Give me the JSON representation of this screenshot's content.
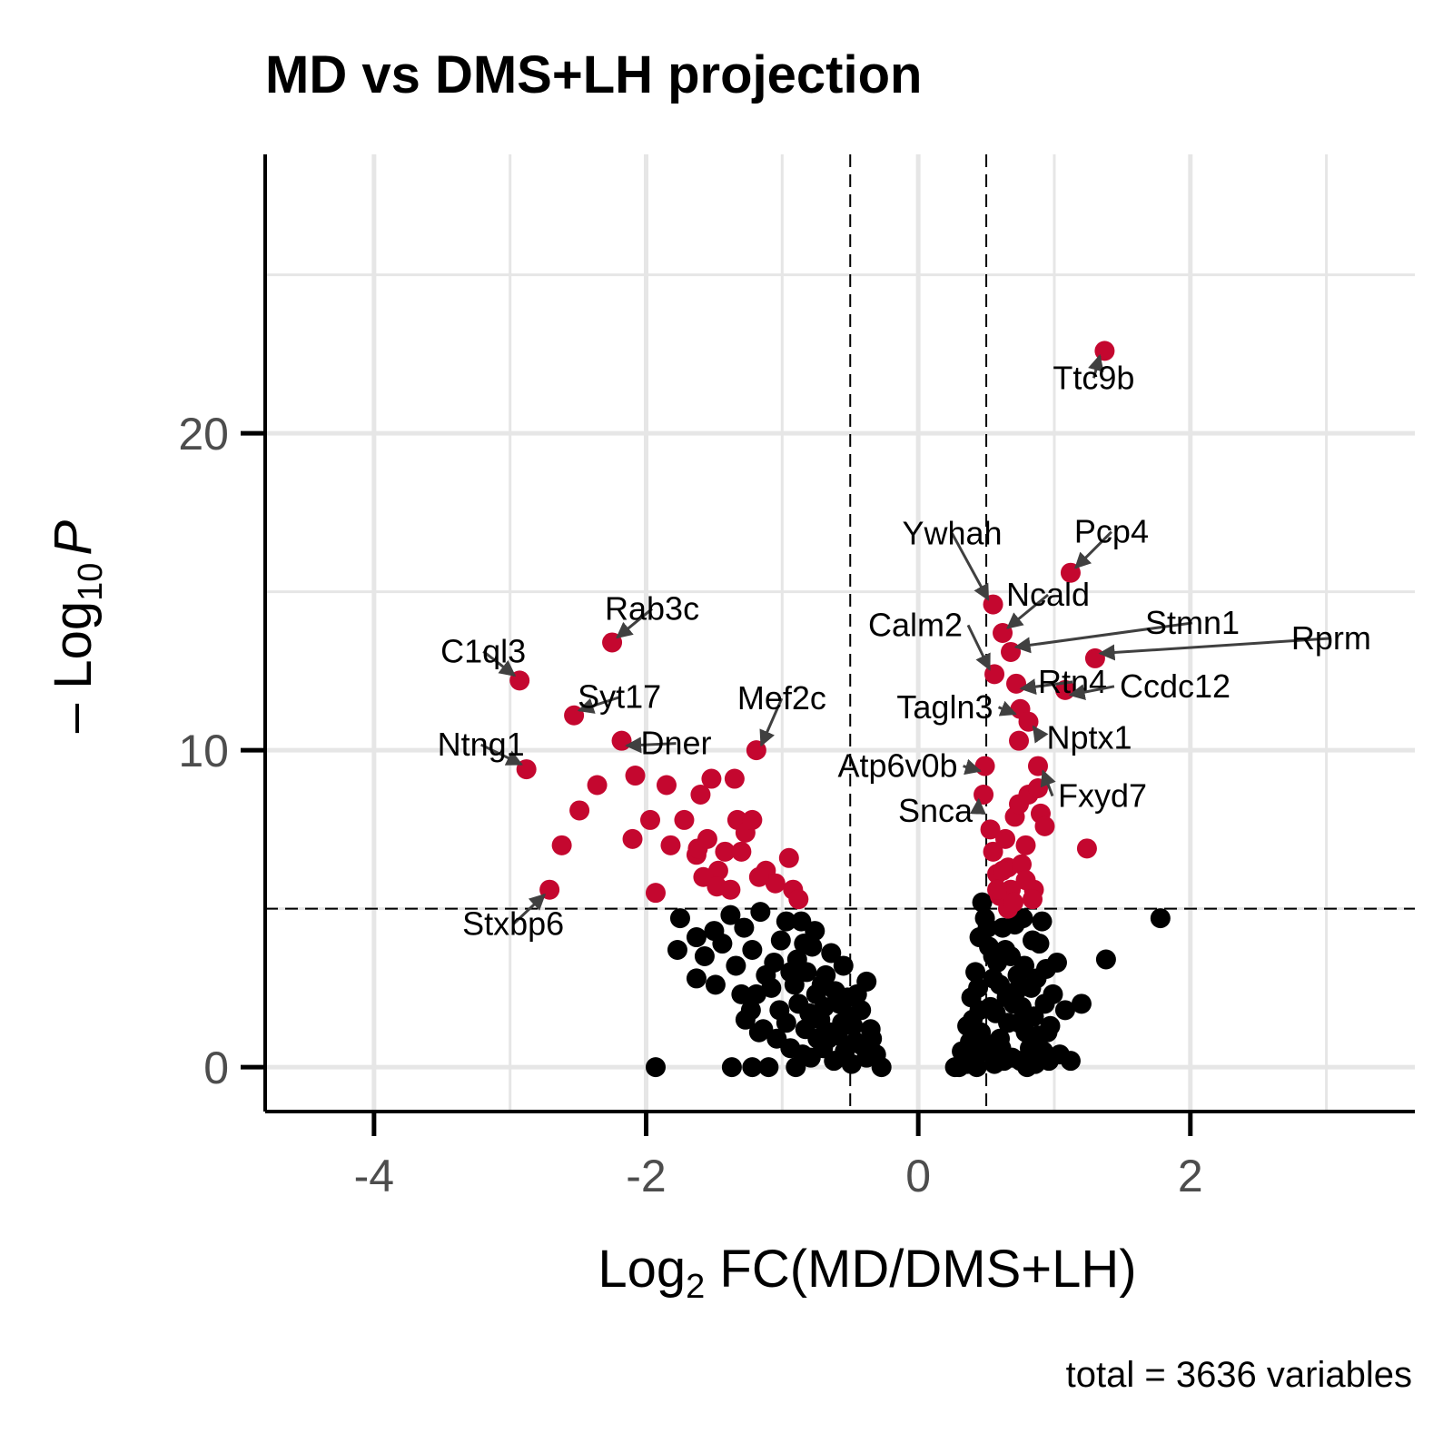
{
  "chart_data": {
    "type": "scatter",
    "title": "MD vs DMS+LH projection",
    "xlabel_main": "Log",
    "xlabel_sub": "2",
    "xlabel_rest": " FC(MD/DMS+LH)",
    "ylabel_main": "– Log",
    "ylabel_sub": "10",
    "ylabel_p": "P",
    "caption": "total = 3636 variables",
    "xlim": [
      -4.8,
      3.65
    ],
    "ylim": [
      -1.4,
      28.8
    ],
    "x_ticks": [
      -4,
      -2,
      0,
      2
    ],
    "x_tick_labels": [
      "-4",
      "-2",
      "0",
      "2"
    ],
    "y_ticks": [
      0,
      10,
      20
    ],
    "y_tick_labels": [
      "0",
      "10",
      "20"
    ],
    "fc_cutoff": 0.5,
    "p_cutoff": 5,
    "grid": true,
    "colors": {
      "significant": "#c4072f",
      "not_significant": "#000000",
      "cutoff_line": "#000000",
      "grid": "#e6e6e6"
    },
    "labeled_points": [
      {
        "gene": "Ttc9b",
        "x": 1.37,
        "y": 22.6
      },
      {
        "gene": "Pcp4",
        "x": 1.12,
        "y": 15.6
      },
      {
        "gene": "Ywhah",
        "x": 0.55,
        "y": 14.6
      },
      {
        "gene": "Ncald",
        "x": 0.62,
        "y": 13.7
      },
      {
        "gene": "Stmn1",
        "x": 0.68,
        "y": 13.1
      },
      {
        "gene": "Rprm",
        "x": 1.3,
        "y": 12.9
      },
      {
        "gene": "Calm2",
        "x": 0.56,
        "y": 12.4
      },
      {
        "gene": "Rtn4",
        "x": 0.72,
        "y": 12.1
      },
      {
        "gene": "Ccdc12",
        "x": 1.08,
        "y": 11.9
      },
      {
        "gene": "Tagln3",
        "x": 0.75,
        "y": 11.3
      },
      {
        "gene": "Nptx1",
        "x": 0.81,
        "y": 10.9
      },
      {
        "gene": "Atp6v0b",
        "x": 0.49,
        "y": 9.5
      },
      {
        "gene": "Fxyd7",
        "x": 0.88,
        "y": 9.5
      },
      {
        "gene": "Snca",
        "x": 0.48,
        "y": 8.6
      },
      {
        "gene": "Rab3c",
        "x": -2.25,
        "y": 13.4
      },
      {
        "gene": "C1ql3",
        "x": -2.93,
        "y": 12.2
      },
      {
        "gene": "Syt17",
        "x": -2.53,
        "y": 11.1
      },
      {
        "gene": "Dner",
        "x": -2.18,
        "y": 10.3
      },
      {
        "gene": "Mef2c",
        "x": -1.19,
        "y": 10.0
      },
      {
        "gene": "Ntng1",
        "x": -2.88,
        "y": 9.4
      },
      {
        "gene": "Stxbp6",
        "x": -2.71,
        "y": 5.6
      }
    ],
    "significant_points": [
      [
        -2.62,
        7.0
      ],
      [
        -2.49,
        8.1
      ],
      [
        -2.36,
        8.9
      ],
      [
        -2.08,
        9.2
      ],
      [
        -2.1,
        7.2
      ],
      [
        -1.97,
        7.8
      ],
      [
        -1.82,
        7.0
      ],
      [
        -1.72,
        7.8
      ],
      [
        -1.63,
        6.7
      ],
      [
        -1.6,
        8.6
      ],
      [
        -1.52,
        9.1
      ],
      [
        -1.42,
        6.8
      ],
      [
        -1.47,
        6.2
      ],
      [
        -1.33,
        7.8
      ],
      [
        -1.35,
        9.1
      ],
      [
        -1.27,
        7.4
      ],
      [
        -1.22,
        7.8
      ],
      [
        -1.12,
        6.2
      ],
      [
        -1.05,
        5.8
      ],
      [
        -0.95,
        6.6
      ],
      [
        -0.92,
        5.6
      ],
      [
        -1.93,
        5.5
      ],
      [
        -1.58,
        6.0
      ],
      [
        -1.48,
        5.7
      ],
      [
        -1.3,
        6.8
      ],
      [
        -1.17,
        6.0
      ],
      [
        -1.38,
        5.6
      ],
      [
        -0.88,
        5.3
      ],
      [
        -1.62,
        6.9
      ],
      [
        -1.55,
        7.2
      ],
      [
        -1.85,
        8.9
      ],
      [
        0.53,
        7.5
      ],
      [
        0.55,
        6.8
      ],
      [
        0.58,
        6.1
      ],
      [
        0.6,
        5.4
      ],
      [
        0.64,
        7.2
      ],
      [
        0.66,
        6.3
      ],
      [
        0.68,
        5.6
      ],
      [
        0.71,
        7.9
      ],
      [
        0.74,
        8.3
      ],
      [
        0.76,
        6.4
      ],
      [
        0.79,
        7.0
      ],
      [
        0.81,
        8.6
      ],
      [
        0.85,
        5.6
      ],
      [
        0.88,
        8.8
      ],
      [
        0.9,
        8.0
      ],
      [
        0.93,
        7.6
      ],
      [
        0.79,
        5.9
      ],
      [
        0.74,
        10.3
      ],
      [
        0.66,
        5.0
      ],
      [
        1.24,
        6.9
      ],
      [
        0.62,
        6.2
      ],
      [
        0.7,
        5.2
      ],
      [
        0.58,
        5.6
      ],
      [
        0.84,
        5.3
      ]
    ],
    "ns_points": [
      [
        1.78,
        4.7
      ],
      [
        1.38,
        3.4
      ],
      [
        1.2,
        2.0
      ],
      [
        0.95,
        1.1
      ],
      [
        1.02,
        3.3
      ],
      [
        1.04,
        0.4
      ],
      [
        -1.93,
        0.0
      ],
      [
        -1.37,
        0.0
      ],
      [
        -1.22,
        0.0
      ],
      [
        -1.75,
        4.7
      ],
      [
        -1.77,
        3.7
      ],
      [
        -1.63,
        4.1
      ],
      [
        -1.57,
        3.5
      ],
      [
        -1.63,
        2.8
      ],
      [
        -1.49,
        2.6
      ],
      [
        -1.34,
        3.2
      ],
      [
        -1.28,
        4.4
      ],
      [
        -1.22,
        3.7
      ],
      [
        -1.19,
        2.3
      ],
      [
        -1.08,
        2.5
      ],
      [
        -1.01,
        4.0
      ],
      [
        -0.97,
        4.6
      ],
      [
        -0.86,
        4.6
      ],
      [
        -0.89,
        3.4
      ],
      [
        -0.82,
        3.0
      ],
      [
        -0.78,
        3.8
      ],
      [
        -0.75,
        2.3
      ],
      [
        -0.69,
        1.9
      ],
      [
        -0.64,
        3.6
      ],
      [
        -0.61,
        2.4
      ],
      [
        -0.55,
        3.2
      ],
      [
        -0.52,
        2.2
      ],
      [
        -0.42,
        1.8
      ],
      [
        -0.38,
        2.7
      ],
      [
        -0.35,
        1.2
      ],
      [
        -0.31,
        0.4
      ],
      [
        -0.27,
        0.0
      ],
      [
        -0.46,
        0.8
      ],
      [
        -0.56,
        1.4
      ],
      [
        -0.66,
        0.9
      ],
      [
        -0.72,
        1.5
      ],
      [
        -0.83,
        1.2
      ],
      [
        -0.94,
        0.6
      ],
      [
        -1.04,
        0.9
      ],
      [
        -1.14,
        1.2
      ],
      [
        -1.23,
        1.8
      ],
      [
        -1.17,
        1.1
      ],
      [
        -1.27,
        1.5
      ],
      [
        -0.88,
        2.0
      ],
      [
        -0.62,
        0.2
      ],
      [
        -0.49,
        0.1
      ],
      [
        -0.38,
        0.3
      ],
      [
        -0.79,
        0.3
      ],
      [
        -0.9,
        0.0
      ],
      [
        -1.1,
        0.0
      ],
      [
        -0.7,
        0.6
      ],
      [
        -0.59,
        1.0
      ],
      [
        -0.48,
        1.3
      ],
      [
        -0.42,
        0.7
      ],
      [
        -0.34,
        0.9
      ],
      [
        -0.54,
        0.5
      ],
      [
        -0.74,
        0.9
      ],
      [
        -0.85,
        0.4
      ],
      [
        -0.97,
        1.4
      ],
      [
        -0.65,
        1.1
      ],
      [
        -0.68,
        2.9
      ],
      [
        -0.58,
        2.0
      ],
      [
        -0.71,
        2.6
      ],
      [
        -0.8,
        1.7
      ],
      [
        -0.91,
        2.6
      ],
      [
        -1.02,
        1.8
      ],
      [
        -1.12,
        2.9
      ],
      [
        -1.06,
        3.3
      ],
      [
        -0.94,
        3.0
      ],
      [
        -0.84,
        3.9
      ],
      [
        -0.76,
        4.3
      ],
      [
        -1.16,
        4.9
      ],
      [
        -1.38,
        4.8
      ],
      [
        -1.5,
        4.3
      ],
      [
        -1.44,
        3.9
      ],
      [
        -1.3,
        2.3
      ],
      [
        -0.45,
        2.3
      ],
      [
        -0.5,
        1.6
      ],
      [
        0.27,
        0.0
      ],
      [
        0.32,
        0.5
      ],
      [
        0.36,
        1.3
      ],
      [
        0.39,
        2.2
      ],
      [
        0.42,
        3.0
      ],
      [
        0.45,
        4.1
      ],
      [
        0.47,
        5.2
      ],
      [
        0.49,
        4.7
      ],
      [
        0.44,
        2.5
      ],
      [
        0.4,
        1.5
      ],
      [
        0.33,
        0.2
      ],
      [
        0.52,
        3.8
      ],
      [
        0.55,
        2.8
      ],
      [
        0.57,
        1.7
      ],
      [
        0.6,
        0.9
      ],
      [
        0.63,
        0.2
      ],
      [
        0.65,
        2.2
      ],
      [
        0.68,
        3.5
      ],
      [
        0.71,
        4.5
      ],
      [
        0.73,
        2.9
      ],
      [
        0.76,
        1.9
      ],
      [
        0.79,
        1.1
      ],
      [
        0.82,
        0.6
      ],
      [
        0.85,
        1.6
      ],
      [
        0.87,
        2.8
      ],
      [
        0.89,
        3.9
      ],
      [
        0.91,
        4.6
      ],
      [
        0.84,
        4.0
      ],
      [
        0.78,
        3.2
      ],
      [
        0.72,
        2.4
      ],
      [
        0.66,
        1.4
      ],
      [
        0.61,
        0.6
      ],
      [
        0.56,
        0.1
      ],
      [
        0.5,
        0.5
      ],
      [
        0.46,
        1.1
      ],
      [
        0.41,
        0.4
      ],
      [
        0.38,
        0.8
      ],
      [
        0.53,
        1.9
      ],
      [
        0.58,
        3.3
      ],
      [
        0.62,
        4.4
      ],
      [
        0.69,
        0.3
      ],
      [
        0.75,
        0.2
      ],
      [
        0.8,
        0.0
      ],
      [
        0.86,
        0.1
      ],
      [
        0.92,
        0.5
      ],
      [
        0.97,
        1.3
      ],
      [
        0.99,
        2.3
      ],
      [
        0.93,
        2.0
      ],
      [
        0.88,
        1.0
      ],
      [
        0.74,
        1.4
      ],
      [
        0.7,
        2.0
      ],
      [
        0.6,
        2.6
      ],
      [
        0.55,
        3.5
      ],
      [
        0.45,
        1.8
      ],
      [
        0.48,
        0.8
      ],
      [
        0.43,
        0.0
      ],
      [
        0.36,
        0.1
      ],
      [
        0.3,
        0.0
      ],
      [
        0.51,
        4.4
      ],
      [
        0.64,
        3.7
      ],
      [
        0.77,
        4.7
      ],
      [
        0.83,
        2.5
      ],
      [
        0.94,
        3.1
      ],
      [
        0.96,
        0.2
      ],
      [
        1.08,
        1.8
      ],
      [
        1.12,
        0.2
      ]
    ]
  }
}
